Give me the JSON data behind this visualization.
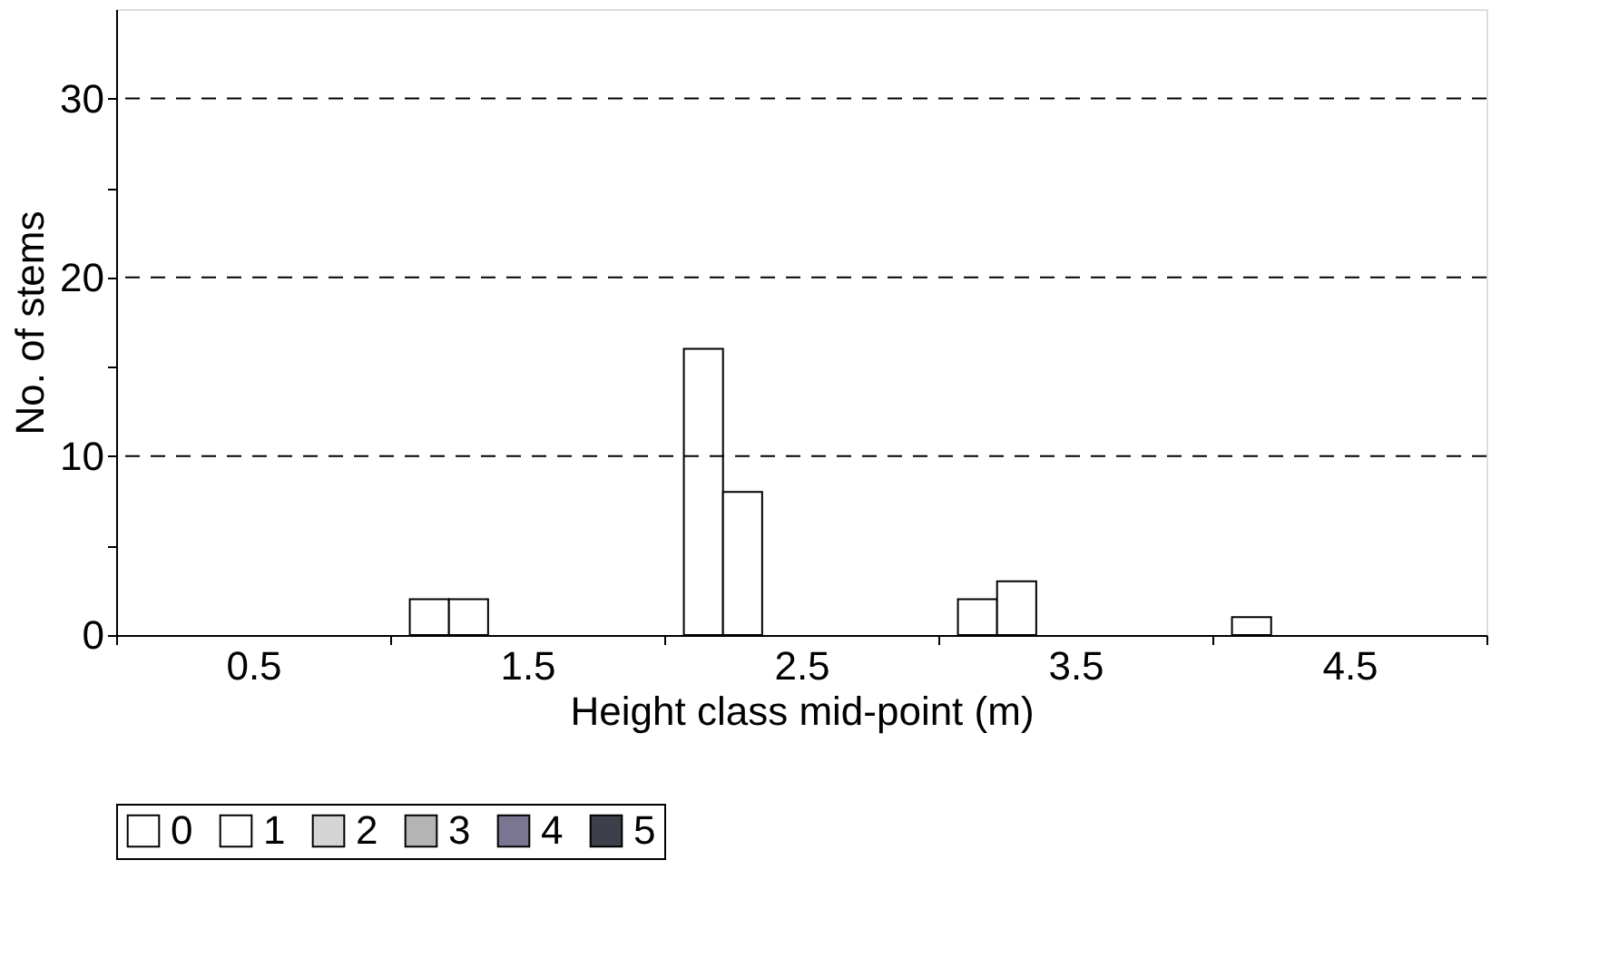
{
  "chart_data": {
    "type": "bar",
    "xlabel": "Height class mid-point (m)",
    "ylabel": "No. of stems",
    "categories": [
      "0.5",
      "1.5",
      "2.5",
      "3.5",
      "4.5"
    ],
    "series": [
      {
        "name": "0",
        "color": "#ffffff",
        "values": [
          0,
          2,
          16,
          2,
          1
        ]
      },
      {
        "name": "1",
        "color": "#ffffff",
        "values": [
          0,
          2,
          8,
          3,
          0
        ]
      },
      {
        "name": "2",
        "color": "#d4d4d4",
        "values": [
          0,
          0,
          0,
          0,
          0
        ]
      },
      {
        "name": "3",
        "color": "#b4b4b4",
        "values": [
          0,
          0,
          0,
          0,
          0
        ]
      },
      {
        "name": "4",
        "color": "#7a7590",
        "values": [
          0,
          0,
          0,
          0,
          0
        ]
      },
      {
        "name": "5",
        "color": "#3d3f4a",
        "values": [
          0,
          0,
          0,
          0,
          0
        ]
      }
    ],
    "ylim": [
      0,
      35
    ],
    "yticks": [
      0,
      {
        "value": 5,
        "label": null
      },
      10,
      {
        "value": 15,
        "label": null
      },
      20,
      {
        "value": 25,
        "label": null
      },
      30
    ],
    "grid": "y",
    "legend": "bottom"
  }
}
